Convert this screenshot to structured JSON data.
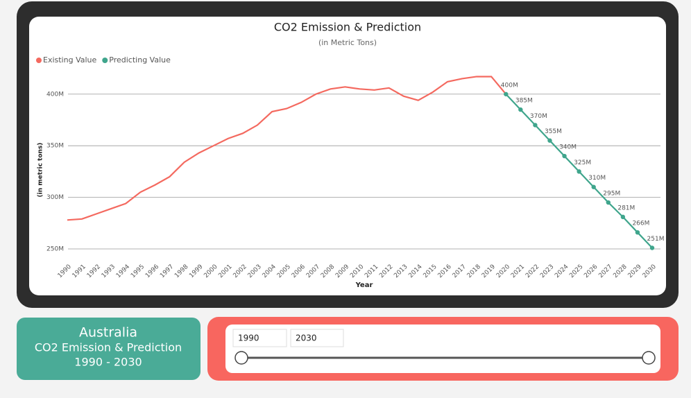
{
  "chart_data": {
    "type": "line",
    "title": "CO2 Emission & Prediction",
    "subtitle": "(in Metric Tons)",
    "x_label": "Year",
    "y_label": "(in metric tons)",
    "categories": [
      "1990",
      "1991",
      "1992",
      "1993",
      "1994",
      "1995",
      "1996",
      "1997",
      "1998",
      "1999",
      "2000",
      "2001",
      "2002",
      "2003",
      "2004",
      "2005",
      "2006",
      "2007",
      "2008",
      "2009",
      "2010",
      "2011",
      "2012",
      "2013",
      "2014",
      "2015",
      "2016",
      "2017",
      "2018",
      "2019",
      "2020",
      "2021",
      "2022",
      "2023",
      "2024",
      "2025",
      "2026",
      "2027",
      "2028",
      "2029",
      "2030"
    ],
    "series": [
      {
        "name": "Existing Value",
        "color": "#f4695f",
        "values": [
          278000000,
          279000000,
          284000000,
          289000000,
          294000000,
          305000000,
          312000000,
          320000000,
          334000000,
          343000000,
          350000000,
          357000000,
          362000000,
          370000000,
          383000000,
          386000000,
          392000000,
          400000000,
          405000000,
          407000000,
          405000000,
          404000000,
          406000000,
          398000000,
          394000000,
          402000000,
          412000000,
          415000000,
          417000000,
          417000000,
          400000000,
          null,
          null,
          null,
          null,
          null,
          null,
          null,
          null,
          null,
          null
        ]
      },
      {
        "name": "Predicting Value",
        "color": "#3fa58c",
        "values": [
          null,
          null,
          null,
          null,
          null,
          null,
          null,
          null,
          null,
          null,
          null,
          null,
          null,
          null,
          null,
          null,
          null,
          null,
          null,
          null,
          null,
          null,
          null,
          null,
          null,
          null,
          null,
          null,
          null,
          null,
          400000000,
          385000000,
          370000000,
          355000000,
          340000000,
          325000000,
          310000000,
          295000000,
          281000000,
          266000000,
          251000000
        ],
        "value_labels": [
          null,
          null,
          null,
          null,
          null,
          null,
          null,
          null,
          null,
          null,
          null,
          null,
          null,
          null,
          null,
          null,
          null,
          null,
          null,
          null,
          null,
          null,
          null,
          null,
          null,
          null,
          null,
          null,
          null,
          null,
          "400M",
          "385M",
          "370M",
          "355M",
          "340M",
          "325M",
          "310M",
          "295M",
          "281M",
          "266M",
          "251M"
        ]
      }
    ],
    "ylim": [
      250000000,
      420000000
    ],
    "yticks": [
      {
        "value": 250000000,
        "label": "250M"
      },
      {
        "value": 300000000,
        "label": "300M"
      },
      {
        "value": 350000000,
        "label": "350M"
      },
      {
        "value": 400000000,
        "label": "400M"
      }
    ],
    "grid": true,
    "legend": "top-left"
  },
  "card": {
    "country": "Australia",
    "title": "CO2 Emission & Prediction",
    "range": "1990 - 2030"
  },
  "slicer": {
    "start": "1990",
    "end": "2030"
  }
}
